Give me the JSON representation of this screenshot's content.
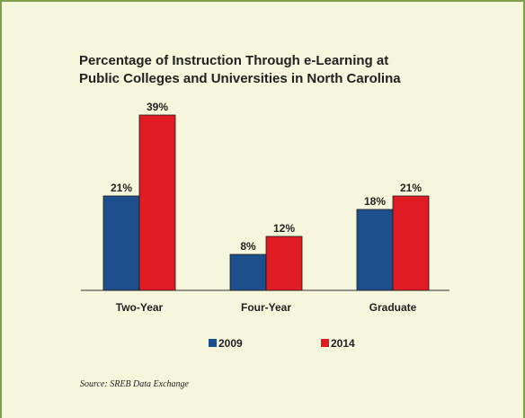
{
  "chart_data": {
    "type": "bar",
    "title_lines": [
      "Percentage of Instruction Through e-Learning at",
      "Public Colleges and Universities in North Carolina"
    ],
    "categories": [
      "Two-Year",
      "Four-Year",
      "Graduate"
    ],
    "series": [
      {
        "name": "2009",
        "color": "#1d4f8c",
        "values": [
          21,
          8,
          18
        ],
        "labels": [
          "21%",
          "8%",
          "18%"
        ]
      },
      {
        "name": "2014",
        "color": "#e01b24",
        "values": [
          39,
          12,
          21
        ],
        "labels": [
          "39%",
          "12%",
          "21%"
        ]
      }
    ],
    "ylim": [
      0,
      40
    ],
    "grid": false,
    "legend_position": "bottom"
  },
  "source": "Source: SREB Data Exchange"
}
